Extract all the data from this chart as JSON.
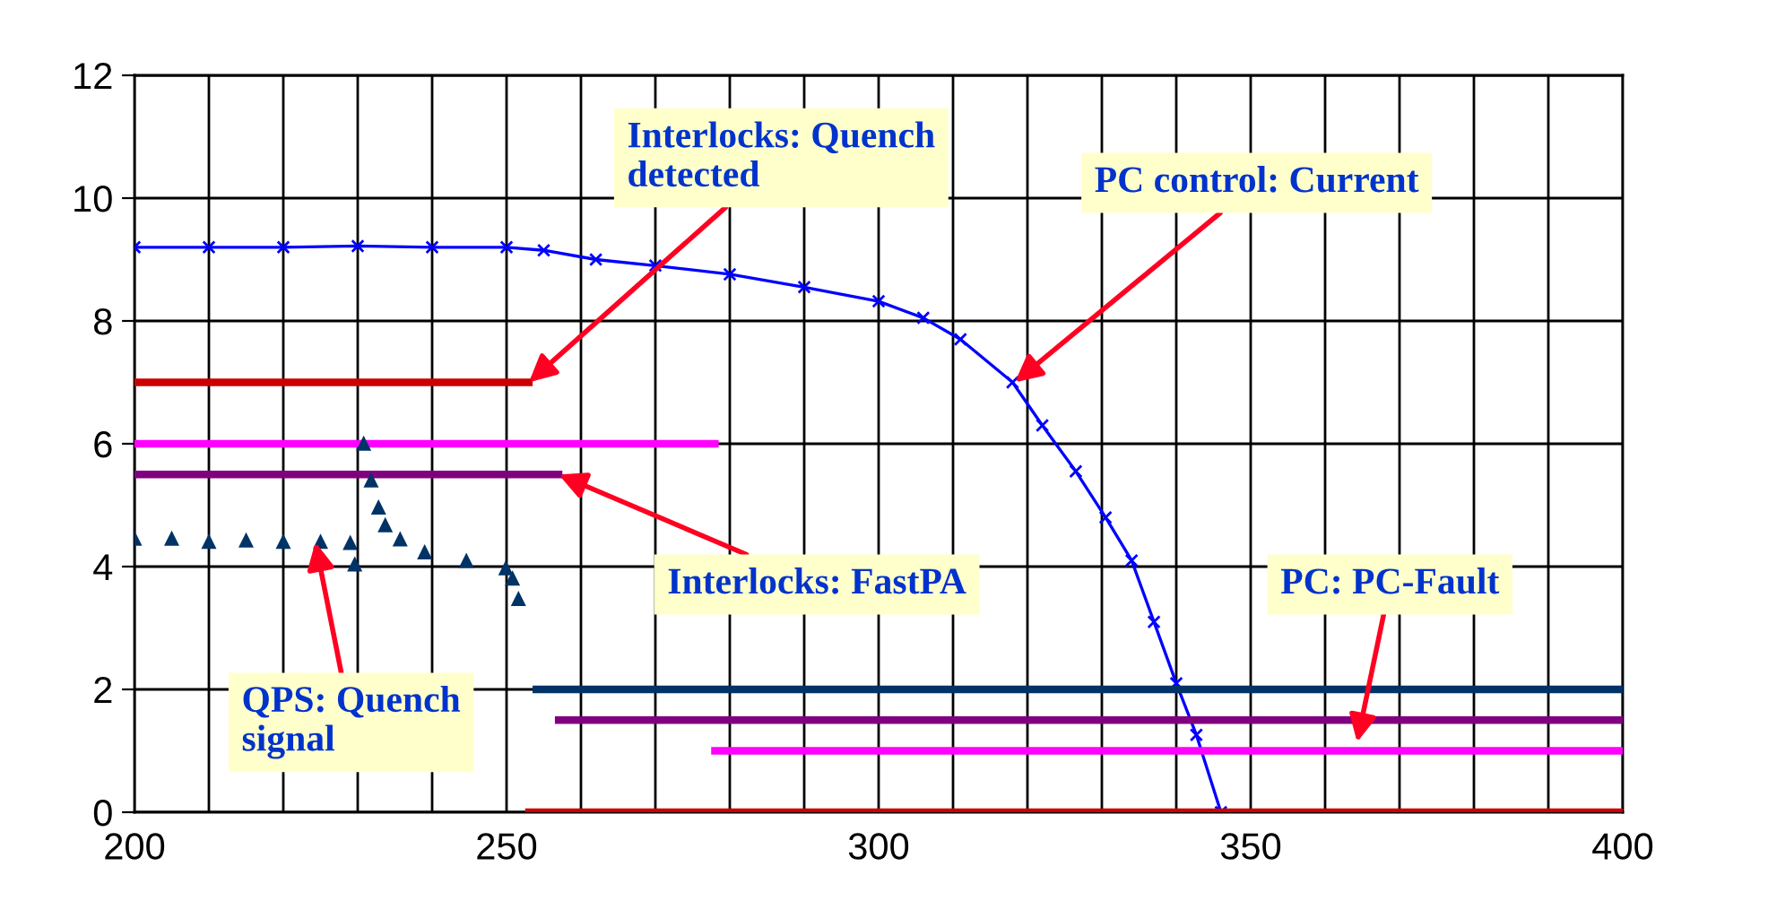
{
  "chart_data": {
    "type": "line",
    "series": [
      {
        "color": "#0000ff",
        "marker": "cross",
        "line_style": "solid",
        "x": [
          200,
          210,
          220,
          230,
          240,
          250,
          255,
          262,
          270,
          280,
          290,
          300,
          306,
          311,
          318,
          322,
          326.5,
          330.5,
          334,
          337,
          340,
          342.7,
          346
        ],
        "values": [
          9.2,
          9.2,
          9.2,
          9.22,
          9.2,
          9.2,
          9.15,
          9.0,
          8.9,
          8.76,
          8.55,
          8.32,
          8.05,
          7.7,
          7.0,
          6.3,
          5.55,
          4.8,
          4.1,
          3.1,
          2.1,
          1.26,
          0
        ]
      },
      {
        "color": "#cc0000",
        "marker": "none",
        "line_style": "solid",
        "x": [
          200,
          253
        ],
        "values": [
          7,
          7
        ]
      },
      {
        "color": "#cc0000",
        "marker": "none",
        "line_style": "solid",
        "x": [
          253,
          400
        ],
        "values": [
          0,
          0
        ]
      },
      {
        "color": "#ff00ff",
        "marker": "none",
        "line_style": "solid",
        "x": [
          200,
          278
        ],
        "values": [
          6,
          6
        ]
      },
      {
        "color": "#ff00ff",
        "marker": "none",
        "line_style": "solid",
        "x": [
          278,
          400
        ],
        "values": [
          1,
          1
        ]
      },
      {
        "color": "#800080",
        "marker": "none",
        "line_style": "solid",
        "x": [
          200,
          257
        ],
        "values": [
          5.5,
          5.5
        ]
      },
      {
        "color": "#800080",
        "marker": "none",
        "line_style": "solid",
        "x": [
          257,
          400
        ],
        "values": [
          1.5,
          1.5
        ]
      },
      {
        "type": "scatter",
        "color": "#003366",
        "marker": "triangle",
        "x": [
          200,
          205,
          210,
          215,
          220,
          225,
          229,
          229.6,
          230.8,
          231.8,
          232.8,
          233.7,
          235.7,
          239,
          244.6,
          249.9,
          250.8,
          251.6
        ],
        "values": [
          4.45,
          4.45,
          4.4,
          4.42,
          4.4,
          4.4,
          4.38,
          4.03,
          6.0,
          5.4,
          4.96,
          4.67,
          4.44,
          4.23,
          4.09,
          3.97,
          3.8,
          3.47
        ]
      },
      {
        "color": "#003366",
        "marker": "none",
        "line_style": "solid",
        "x": [
          254,
          400
        ],
        "values": [
          2,
          2
        ]
      }
    ],
    "xlim": [
      200,
      400
    ],
    "ylim": [
      0,
      12
    ],
    "xticks": [
      200,
      {
        "value": 210,
        "label": null
      },
      {
        "value": 220,
        "label": null
      },
      {
        "value": 230,
        "label": null
      },
      {
        "value": 240,
        "label": null
      },
      250,
      {
        "value": 260,
        "label": null
      },
      {
        "value": 270,
        "label": null
      },
      {
        "value": 280,
        "label": null
      },
      {
        "value": 290,
        "label": null
      },
      300,
      {
        "value": 310,
        "label": null
      },
      {
        "value": 320,
        "label": null
      },
      {
        "value": 330,
        "label": null
      },
      {
        "value": 340,
        "label": null
      },
      350,
      {
        "value": 360,
        "label": null
      },
      {
        "value": 370,
        "label": null
      },
      {
        "value": 380,
        "label": null
      },
      {
        "value": 390,
        "label": null
      },
      400
    ],
    "yticks": [
      0,
      2,
      4,
      6,
      8,
      10,
      12
    ],
    "grid": true,
    "annotations": [
      {
        "text": "Interlocks: Quench\ndetected",
        "x": 253,
        "y": 7
      },
      {
        "text": "PC control: Current",
        "x": 318.3,
        "y": 7.0
      },
      {
        "text": "Interlocks: FastPA",
        "x": 257,
        "y": 5.5
      },
      {
        "text": "QPS: Quench\nsignal",
        "x": 224.3,
        "y": 4.4
      },
      {
        "text": "PC: PC-Fault",
        "x": 364.3,
        "y": 1.14
      }
    ]
  }
}
